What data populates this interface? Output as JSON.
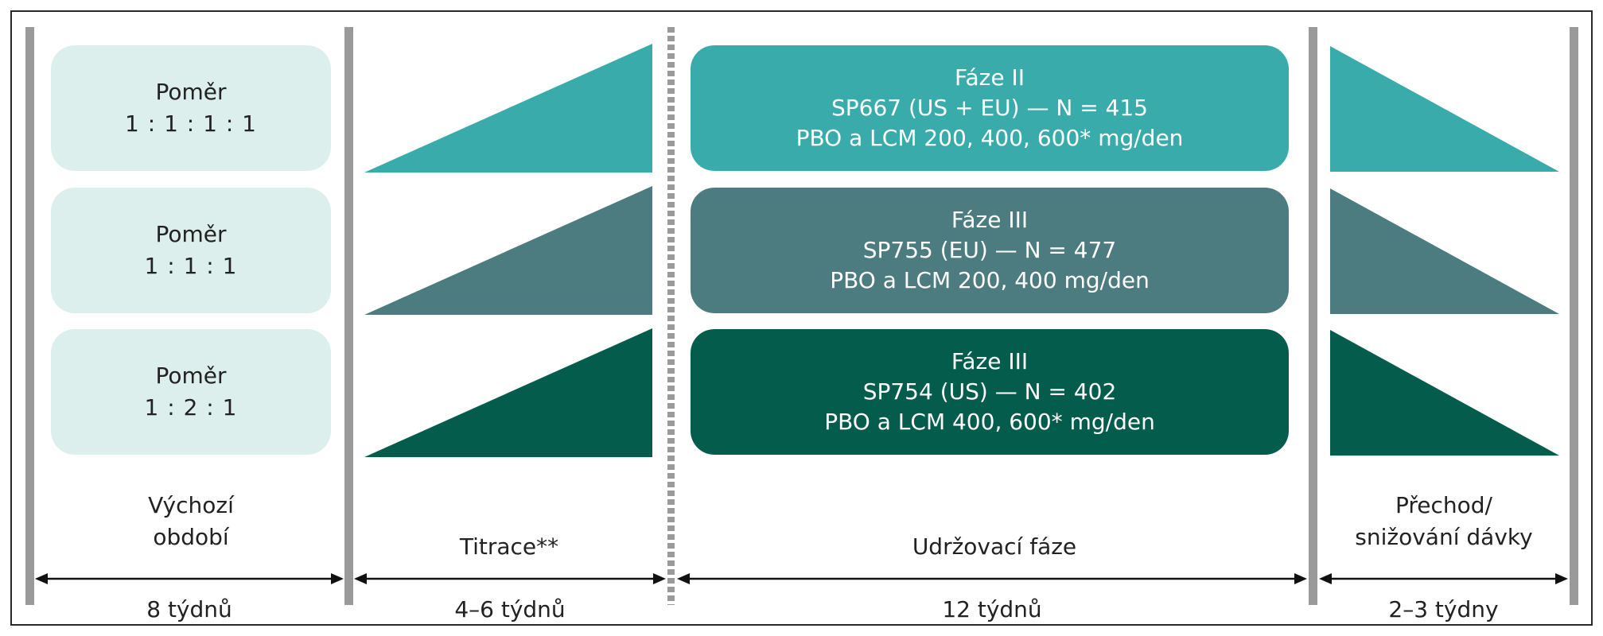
{
  "ratios": [
    {
      "label": "Poměr",
      "value": "1 : 1 : 1 : 1"
    },
    {
      "label": "Poměr",
      "value": "1 : 1 : 1"
    },
    {
      "label": "Poměr",
      "value": "1 : 2 : 1"
    }
  ],
  "studies": [
    {
      "phase": "Fáze II",
      "study": "SP667 (US + EU) — N = 415",
      "doses": "PBO a LCM 200, 400, 600* mg/den",
      "color": "#3aabab"
    },
    {
      "phase": "Fáze III",
      "study": "SP755 (EU) — N = 477",
      "doses": "PBO a LCM 200, 400 mg/den",
      "color": "#4c7c7f"
    },
    {
      "phase": "Fáze III",
      "study": "SP754 (US) — N = 402",
      "doses": "PBO a LCM 400, 600* mg/den",
      "color": "#045c4c"
    }
  ],
  "periods": [
    {
      "line1": "Výchozí",
      "line2": "období",
      "duration": "8 týdnů"
    },
    {
      "line1": "Titrace**",
      "duration": "4–6 týdnů"
    },
    {
      "line1": "Udržovací fáze",
      "duration": "12 týdnů"
    },
    {
      "line1": "Přechod/",
      "line2": "snižování dávky",
      "duration": "2–3 týdny"
    }
  ]
}
